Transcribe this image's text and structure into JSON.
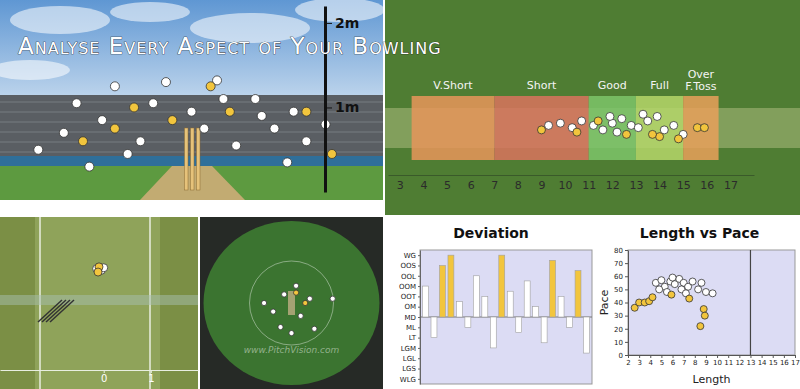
{
  "chart_data": [
    {
      "type": "scatter",
      "title": "Analyse Every Aspect of Your Bowling",
      "xlim": [
        -1.5,
        1.5
      ],
      "ylim": [
        0,
        2.2
      ],
      "yticks": [
        {
          "value": 1,
          "label": "1m"
        },
        {
          "value": 2,
          "label": "2m"
        }
      ],
      "tick_labels": "y",
      "series": [
        {
          "color": "#ffffff",
          "x": [
            -0.9,
            -0.6,
            -0.2,
            0.2,
            0.5,
            0.8,
            -1.0,
            -0.7,
            -0.4,
            0.1,
            0.35,
            0.65,
            0.9,
            -0.5,
            0.0,
            0.55,
            -0.3,
            -1.2,
            1.05,
            0.25,
            -0.8,
            0.75
          ],
          "values": [
            1.05,
            1.25,
            1.3,
            1.32,
            1.1,
            0.95,
            0.7,
            0.85,
            0.6,
            0.75,
            0.55,
            0.75,
            0.6,
            0.45,
            0.95,
            0.9,
            1.05,
            0.5,
            0.8,
            1.1,
            0.3,
            0.35
          ]
        },
        {
          "color": "#f2c53d",
          "x": [
            -0.45,
            -0.15,
            0.3,
            -0.85,
            0.9,
            0.15,
            1.1,
            -0.6
          ],
          "values": [
            1.0,
            0.85,
            0.95,
            0.6,
            0.95,
            1.25,
            0.45,
            0.75
          ]
        }
      ]
    },
    {
      "type": "scatter",
      "xlim": [
        2.5,
        18
      ],
      "ylim": [
        -2,
        2.8
      ],
      "xticks": [
        3,
        4,
        5,
        6,
        7,
        8,
        9,
        10,
        11,
        12,
        13,
        14,
        15,
        16,
        17
      ],
      "tick_labels": "x",
      "zones": [
        {
          "label": "V.Short",
          "from": 3.5,
          "to": 7,
          "color": "#e8955a"
        },
        {
          "label": "Short",
          "from": 7,
          "to": 11,
          "color": "#d9735e"
        },
        {
          "label": "Good",
          "from": 11,
          "to": 13,
          "color": "#7cc46a"
        },
        {
          "label": "Full",
          "from": 13,
          "to": 15,
          "color": "#b5d66a"
        },
        {
          "label": "Over F.Toss",
          "from": 15,
          "to": 16.5,
          "color": "#e9a05a"
        }
      ],
      "series": [
        {
          "color": "#ffffff",
          "x": [
            9.3,
            9.8,
            10.3,
            10.7,
            11.2,
            11.6,
            12.0,
            12.4,
            12.8,
            13.1,
            13.5,
            13.9,
            14.2,
            14.6,
            15.0,
            12.2,
            11.9,
            13.3
          ],
          "values": [
            0,
            0.05,
            -0.05,
            0.1,
            0,
            -0.1,
            0.05,
            0.15,
            0,
            -0.05,
            0.1,
            0.2,
            -0.1,
            0,
            -0.2,
            -0.15,
            0.2,
            0.25
          ]
        },
        {
          "color": "#f2c53d",
          "x": [
            9.0,
            10.5,
            11.4,
            12.6,
            14.0,
            14.8,
            15.6,
            15.9,
            13.7
          ],
          "values": [
            -0.1,
            -0.15,
            0.1,
            -0.2,
            -0.25,
            -0.3,
            -0.05,
            -0.05,
            -0.2
          ]
        }
      ]
    },
    {
      "type": "scatter",
      "xlim": [
        -2.2,
        2
      ],
      "ylim": [
        0,
        10
      ],
      "xticks": [
        0,
        1
      ],
      "tick_labels": "x",
      "series": [
        {
          "color": "#ffffff",
          "x": [
            -0.15,
            -0.05,
            0.0
          ],
          "values": [
            7.0,
            6.9,
            7.05
          ]
        },
        {
          "color": "#f2c53d",
          "x": [
            -0.1,
            -0.12
          ],
          "values": [
            7.1,
            6.8
          ]
        }
      ]
    },
    {
      "type": "scatter",
      "xlim": [
        -1,
        1
      ],
      "ylim": [
        -1,
        1
      ],
      "tick_labels": false,
      "annotation": "www.PitchVision.com",
      "series": [
        {
          "color": "#ffffff",
          "x": [
            0.05,
            -0.08,
            0.2,
            -0.2,
            0.1,
            0.45,
            -0.3,
            0.0,
            0.25,
            -0.12
          ],
          "values": [
            0.2,
            0.1,
            0.05,
            -0.1,
            -0.15,
            0.05,
            0.0,
            -0.35,
            -0.3,
            -0.28
          ]
        },
        {
          "color": "#f2c53d",
          "x": [
            0.05,
            0.15
          ],
          "values": [
            0.12,
            0.0
          ]
        }
      ]
    },
    {
      "type": "bar",
      "title": "Deviation",
      "categories": [
        null,
        null,
        null,
        null,
        null,
        null,
        null,
        null,
        null,
        null,
        null,
        null,
        null,
        null,
        null,
        null,
        null,
        null,
        null,
        null
      ],
      "values": [
        3,
        -2,
        5,
        6,
        1.5,
        -1,
        4,
        2,
        -3,
        6,
        2.5,
        -1.5,
        3.5,
        1,
        -2.5,
        5.5,
        2,
        -1,
        4.5,
        -3.5
      ],
      "colors": [
        "#ffffff",
        "#ffffff",
        "#f2c53d",
        "#f2c53d",
        "#ffffff",
        "#ffffff",
        "#ffffff",
        "#ffffff",
        "#ffffff",
        "#f2c53d",
        "#ffffff",
        "#ffffff",
        "#ffffff",
        "#ffffff",
        "#ffffff",
        "#f2c53d",
        "#ffffff",
        "#ffffff",
        "#f2c53d",
        "#ffffff"
      ],
      "ylim": [
        -6.5,
        6.5
      ],
      "yticks": [
        {
          "value": -6,
          "label": "WLG"
        },
        {
          "value": -5,
          "label": "LGS"
        },
        {
          "value": -4,
          "label": "LGL"
        },
        {
          "value": -3,
          "label": "LGM"
        },
        {
          "value": -2,
          "label": "LT"
        },
        {
          "value": -1,
          "label": "ML"
        },
        {
          "value": 0,
          "label": "MD"
        },
        {
          "value": 1,
          "label": "OM"
        },
        {
          "value": 2,
          "label": "OOT"
        },
        {
          "value": 3,
          "label": "OOM"
        },
        {
          "value": 4,
          "label": "OOL"
        },
        {
          "value": 5,
          "label": "OOS"
        },
        {
          "value": 6,
          "label": "WG"
        }
      ],
      "tick_labels": "y"
    },
    {
      "type": "scatter",
      "title": "Length vs Pace",
      "x_label": "Length",
      "y_label": "Pace",
      "xlim": [
        2,
        17
      ],
      "ylim": [
        0,
        80
      ],
      "xticks": [
        2,
        3,
        4,
        5,
        6,
        7,
        8,
        9,
        10,
        11,
        12,
        13,
        14,
        15,
        16,
        17
      ],
      "yticks": [
        0,
        10,
        20,
        30,
        40,
        50,
        60,
        70,
        80
      ],
      "reference_x": 13,
      "series": [
        {
          "color": "#ffffff",
          "x": [
            4.5,
            5,
            5.3,
            5.8,
            6.2,
            6.6,
            7,
            7.4,
            5.5,
            6.8,
            7.8,
            8.3,
            9,
            9.6,
            4.8,
            6,
            7.2,
            8.6
          ],
          "values": [
            55,
            57,
            52,
            56,
            54,
            58,
            55,
            52,
            48,
            50,
            56,
            50,
            48,
            47,
            50,
            59,
            47,
            55
          ]
        },
        {
          "color": "#f2c53d",
          "x": [
            2.6,
            3,
            3.5,
            3.9,
            4.2,
            5.9,
            7.5,
            8.8,
            8.5,
            8.9
          ],
          "values": [
            36,
            40,
            40,
            41,
            44,
            46,
            43,
            35,
            22,
            30
          ]
        }
      ]
    }
  ]
}
